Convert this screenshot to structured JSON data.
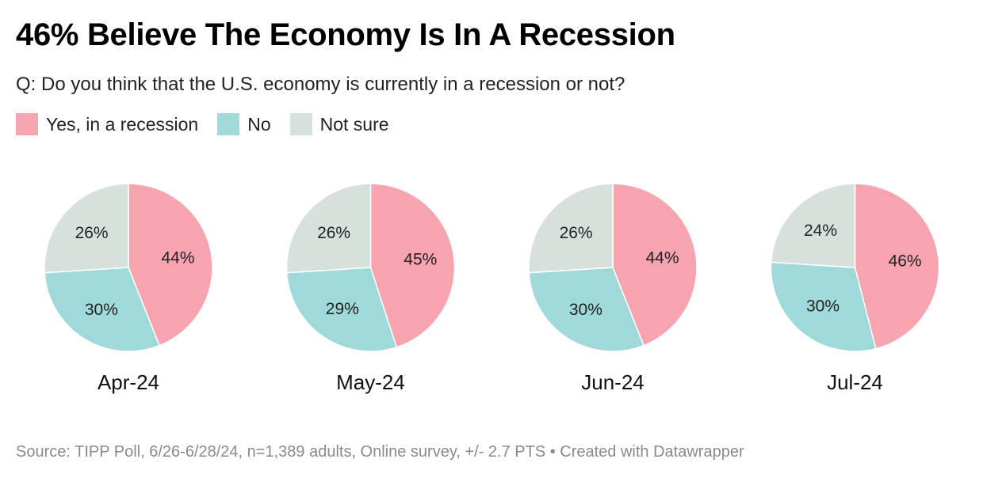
{
  "title": "46% Believe The Economy Is In A Recession",
  "subtitle": "Q: Do you think that the U.S. economy is currently in a recession or not?",
  "legend": [
    {
      "label": "Yes, in a recession",
      "color": "#f7a3b0"
    },
    {
      "label": "No",
      "color": "#9fd9d9"
    },
    {
      "label": "Not sure",
      "color": "#d6e1dc"
    }
  ],
  "chart_data": {
    "type": "pie",
    "title": "46% Believe The Economy Is In A Recession",
    "categories": [
      "Yes, in a recession",
      "No",
      "Not sure"
    ],
    "colors": [
      "#f7a3b0",
      "#9fd9d9",
      "#d6e1dc"
    ],
    "pies": [
      {
        "label": "Apr-24",
        "values": [
          44,
          30,
          26
        ]
      },
      {
        "label": "May-24",
        "values": [
          45,
          29,
          26
        ]
      },
      {
        "label": "Jun-24",
        "values": [
          44,
          30,
          26
        ]
      },
      {
        "label": "Jul-24",
        "values": [
          46,
          30,
          24
        ]
      }
    ]
  },
  "footer": "Source: TIPP Poll, 6/26-6/28/24, n=1,389 adults, Online survey, +/- 2.7 PTS • Created with Datawrapper"
}
